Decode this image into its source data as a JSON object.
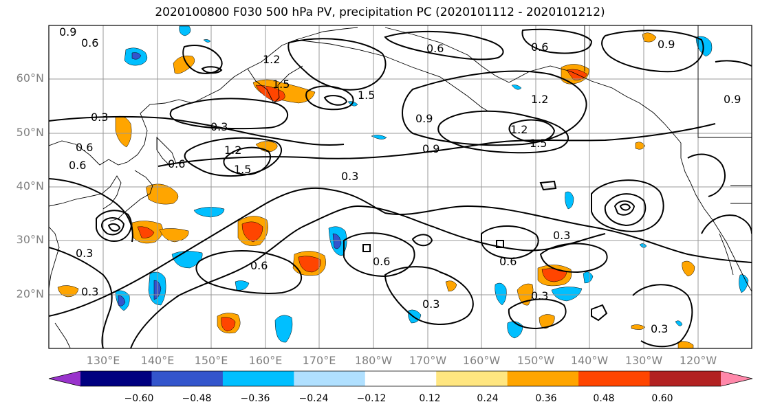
{
  "title": "2020100800 F030 500 hPa PV, precipitation PC (2020101112 - 2020101212)",
  "lat_labels": [
    "60°N",
    "50°N",
    "40°N",
    "30°N",
    "20°N"
  ],
  "lon_labels": [
    "130°E",
    "140°E",
    "150°E",
    "160°E",
    "170°E",
    "180°W",
    "170°W",
    "160°W",
    "150°W",
    "140°W",
    "130°W",
    "120°W"
  ],
  "contour_labels": [
    "0.9",
    "0.6",
    "1.2",
    "1.5",
    "0.6",
    "0.6",
    "1.5",
    "1.2",
    "0.9",
    "1.2",
    "1.5",
    "0.9",
    "0.3",
    "0.6",
    "0.6",
    "0.3",
    "1.2",
    "1.5",
    "0.3",
    "0.6",
    "0.3",
    "0.6",
    "0.3",
    "0.6",
    "0.3",
    "0.3",
    "0.6",
    "0.3",
    "0.9",
    "0.3",
    "0.9"
  ],
  "colorbar": {
    "ticks": [
      "−0.60",
      "−0.48",
      "−0.36",
      "−0.24",
      "−0.12",
      "0.12",
      "0.24",
      "0.36",
      "0.48",
      "0.60"
    ],
    "colors": [
      "#9933cc",
      "#000080",
      "#3355cc",
      "#00bfff",
      "#b0e0ff",
      "#ffffff",
      "#ffe680",
      "#ffa500",
      "#ff4500",
      "#b22222",
      "#ff88aa"
    ]
  }
}
